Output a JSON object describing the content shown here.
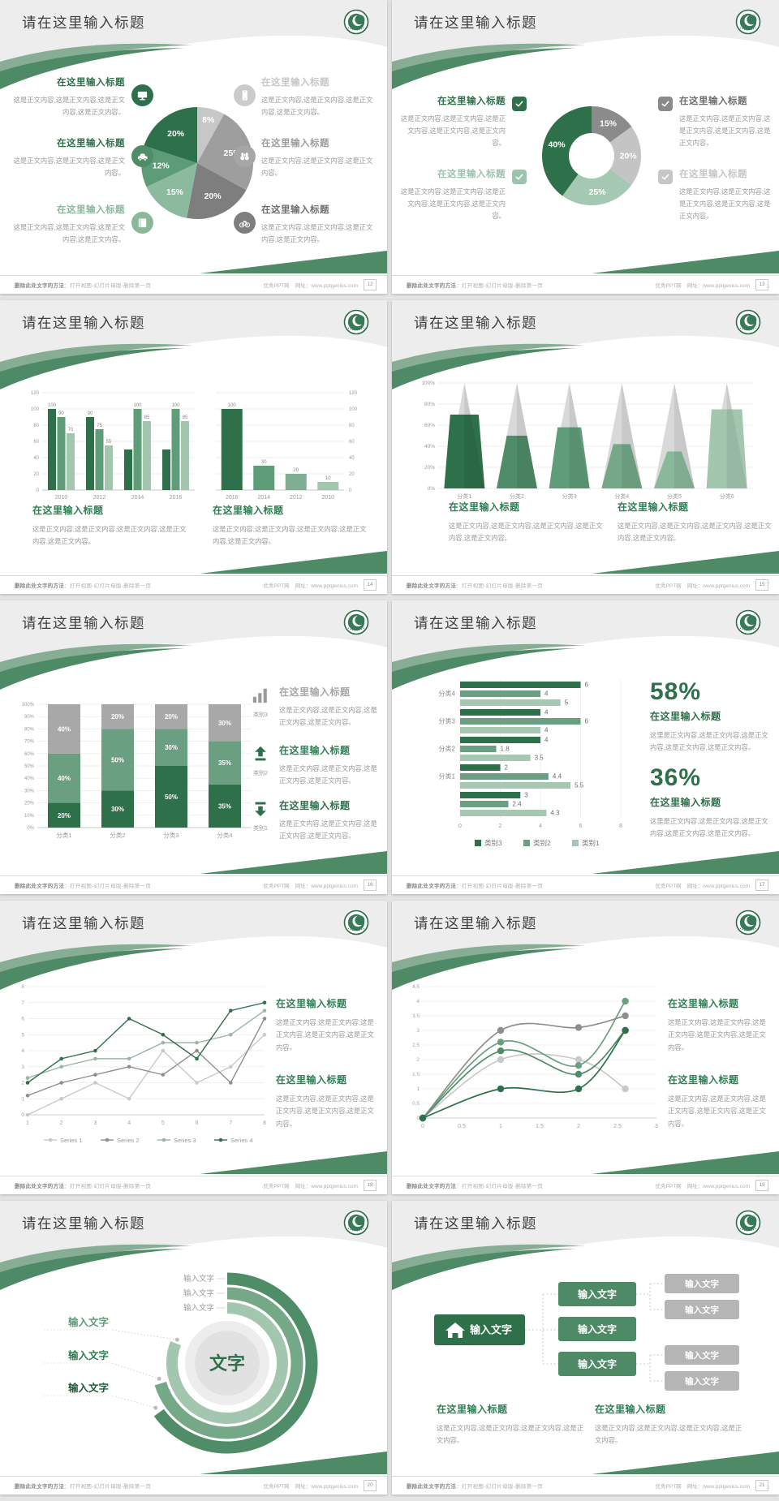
{
  "common": {
    "slide_title": "请在这里输入标题",
    "placeholder_heading": "在这里输入标题",
    "input_text": "输入文字",
    "center_text": "文字",
    "body_short": "这是正文内容,这是正文内容,这是正文内容,这是正文内容。",
    "body_long": "这是正文内容,这是正文内容,这是正文内容,这是正文内容,这是正文内容。",
    "body_alt": "这里是正文内容,这是正文内容,这是正文内容,这是正文内容,这是正文内容。",
    "footer": {
      "left_bold": "删除此处文字的方法",
      "left_rest": "：打开视图-幻灯片母版-删除第一页",
      "right_site": "优秀PPT网",
      "right_url": "网址：www.pptgenius.com"
    },
    "colors": {
      "green_dark": "#2e7049",
      "green": "#4f8c68",
      "green_mid": "#74a887",
      "green_light": "#a3c6af",
      "heading_green": "#2e8054",
      "gray_dark": "#7e7e7e",
      "gray": "#a6a6a6",
      "gray_light": "#cbcbcb",
      "swoosh": "#4e8a66",
      "top_band": "#ededed"
    }
  },
  "slides": [
    {
      "page": "12",
      "type": "pie_callouts",
      "chart_refs": [
        0
      ],
      "left": [
        {
          "heading": "在这里输入标题",
          "hcolor": "#2e7049",
          "body": "这是正文内容,这是正文内容,这是正文内容,这是正文内容。",
          "icon": "monitor-icon",
          "circle": "#2e7049"
        },
        {
          "heading": "在这里输入标题",
          "hcolor": "#2e7049",
          "body": "这是正文内容,这是正文内容,这是正文内容。",
          "icon": "car-icon",
          "circle": "#4f8c68"
        },
        {
          "heading": "在这里输入标题",
          "hcolor": "#8ab89b",
          "body": "这是正文内容,这是正文内容,这是正文内容,这是正文内容。",
          "icon": "book-icon",
          "circle": "#8ab89b"
        }
      ],
      "right": [
        {
          "heading": "在这里输入标题",
          "hcolor": "#c6c6c6",
          "body": "这是正文内容,这是正文内容,这是正文内容,这是正文内容。",
          "icon": "phone-icon",
          "circle": "#cbcbcb"
        },
        {
          "heading": "在这里输入标题",
          "hcolor": "#9e9e9e",
          "body": "这是正文内容,这是正文内容,这是正文内容。",
          "icon": "binoculars-icon",
          "circle": "#a6a6a6"
        },
        {
          "heading": "在这里输入标题",
          "hcolor": "#6f6f6f",
          "body": "这是正文内容,这是正文内容,这是正文内容,这是正文内容。",
          "icon": "bicycle-icon",
          "circle": "#7e7e7e"
        }
      ]
    },
    {
      "page": "13",
      "type": "donut_checks",
      "chart_refs": [
        1
      ],
      "left": [
        {
          "heading": "在这里输入标题",
          "hcolor": "#2e7049",
          "box": "#2e7049",
          "body": "这是正文内容,这是正文内容,这是正文内容,这是正文内容,这是正文内容。"
        },
        {
          "heading": "在这里输入标题",
          "hcolor": "#9cc3ab",
          "box": "#9cc3ab",
          "body": "这是正文内容,这是正文内容,这是正文内容,这是正文内容,这是正文内容。"
        }
      ],
      "right": [
        {
          "heading": "在这里输入标题",
          "hcolor": "#6f6f6f",
          "box": "#8a8a8a",
          "body": "这是正文内容,这是正文内容,这是正文内容,这是正文内容,这是正文内容。"
        },
        {
          "heading": "在这里输入标题",
          "hcolor": "#c6c6c6",
          "box": "#c6c6c6",
          "body": "这是正文内容,这是正文内容,这是正文内容,这是正文内容,这是正文内容。"
        }
      ]
    },
    {
      "page": "14",
      "type": "dual_bars",
      "chart_refs": [
        2,
        3
      ],
      "blocks": [
        {
          "heading": "在这里输入标题",
          "body": "这是正文内容,这是正文内容,这是正文内容,这是正文内容,这是正文内容。"
        },
        {
          "heading": "在这里输入标题",
          "body": "这是正文内容,这是正文内容,这是正文内容,这是正文内容,这是正文内容。"
        }
      ]
    },
    {
      "page": "15",
      "type": "pyramid",
      "chart_refs": [
        4
      ],
      "blocks": [
        {
          "heading": "在这里输入标题",
          "body": "这是正文内容,这是正文内容,这是正文内容,这是正文内容,这是正文内容。"
        },
        {
          "heading": "在这里输入标题",
          "body": "这是正文内容,这是正文内容,这是正文内容,这是正文内容,这是正文内容。"
        }
      ]
    },
    {
      "page": "16",
      "type": "stacked",
      "chart_refs": [
        5
      ],
      "items": [
        {
          "label": "类别3",
          "icon": "chart-bars-icon",
          "hcolor": "#a8a8a8",
          "heading": "在这里输入标题",
          "body": "这是正文内容,这是正文内容,这是正文内容,这是正文内容。"
        },
        {
          "label": "类别2",
          "icon": "arrow-up-icon",
          "hcolor": "#2e8054",
          "heading": "在这里输入标题",
          "body": "这是正文内容,这是正文内容,这是正文内容,这是正文内容。"
        },
        {
          "label": "类别1",
          "icon": "arrow-down-icon",
          "hcolor": "#2e7049",
          "heading": "在这里输入标题",
          "body": "这是正文内容,这是正文内容,这是正文内容,这是正文内容。"
        }
      ]
    },
    {
      "page": "17",
      "type": "hbar_stats",
      "chart_refs": [
        6
      ],
      "stats": [
        {
          "pct": "58%",
          "heading": "在这里输入标题",
          "body": "这里是正文内容,这是正文内容,这是正文内容,这是正文内容,这是正文内容。"
        },
        {
          "pct": "36%",
          "heading": "在这里输入标题",
          "body": "这里是正文内容,这是正文内容,这是正文内容,这是正文内容,这是正文内容。"
        }
      ]
    },
    {
      "page": "18",
      "type": "lines",
      "chart_refs": [
        7
      ],
      "blocks": [
        {
          "heading": "在这里输入标题",
          "body": "这是正文内容,这是正文内容,这是正文内容,这是正文内容,这是正文内容。"
        },
        {
          "heading": "在这里输入标题",
          "body": "这是正文内容,这是正文内容,这是正文内容,这是正文内容,这是正文内容。"
        }
      ]
    },
    {
      "page": "19",
      "type": "smooth",
      "chart_refs": [
        8
      ],
      "blocks": [
        {
          "heading": "在这里输入标题",
          "body": "这是正文内容,这是正文内容,这是正文内容,这是正文内容,这是正文内容。"
        },
        {
          "heading": "在这里输入标题",
          "body": "这是正文内容,这是正文内容,这是正文内容,这是正文内容,这是正文内容。"
        }
      ]
    },
    {
      "page": "20",
      "type": "arcs",
      "chart_refs": [
        9
      ]
    },
    {
      "page": "21",
      "type": "tree",
      "chart_refs": [
        10
      ],
      "blocks": [
        {
          "heading": "在这里输入标题",
          "body": "这是正文内容,这是正文内容,这是正文内容,这是正文内容。"
        },
        {
          "heading": "在这里输入标题",
          "body": "这是正文内容,这是正文内容,这是正文内容,这是正文内容。"
        }
      ]
    }
  ],
  "chart_data": [
    {
      "type": "pie",
      "values": [
        8,
        25,
        20,
        15,
        12,
        20
      ],
      "labels": [
        "8%",
        "25%",
        "20%",
        "15%",
        "12%",
        "20%"
      ],
      "colors": [
        "#c7c7c7",
        "#9e9e9e",
        "#7e7e7e",
        "#8cba9e",
        "#5d9c77",
        "#2e7049"
      ]
    },
    {
      "type": "pie",
      "subtype": "donut",
      "values": [
        15,
        20,
        25,
        40
      ],
      "labels": [
        "15%",
        "20%",
        "25%",
        "40%"
      ],
      "colors": [
        "#8b8b8b",
        "#c4c4c4",
        "#a5c8b2",
        "#2e7049"
      ]
    },
    {
      "type": "bar",
      "categories": [
        "2010",
        "2012",
        "2014",
        "2016"
      ],
      "series": [
        {
          "name": "s1",
          "values": [
            100,
            90,
            50,
            50
          ]
        },
        {
          "name": "s2",
          "values": [
            90,
            75,
            100,
            100
          ]
        },
        {
          "name": "s3",
          "values": [
            70,
            55,
            85,
            85
          ]
        }
      ],
      "bar_labels": [
        [
          "100",
          "90",
          "70"
        ],
        [
          "90",
          "75",
          "55"
        ],
        [
          "",
          "100",
          "85"
        ],
        [
          "",
          "100",
          "85"
        ]
      ],
      "ylim": [
        0,
        120
      ],
      "ytick_step": 20,
      "colors": [
        "#2e7049",
        "#5f9c78",
        "#a3c6af"
      ],
      "y_axis": "left"
    },
    {
      "type": "bar",
      "categories": [
        "2016",
        "2014",
        "2012",
        "2010"
      ],
      "series": [
        {
          "name": "s1",
          "values": [
            100,
            30,
            20,
            10
          ]
        }
      ],
      "bar_labels": [
        [
          "100"
        ],
        [
          "30"
        ],
        [
          "20"
        ],
        [
          "10"
        ]
      ],
      "ylim": [
        0,
        120
      ],
      "ytick_step": 20,
      "colors_per_bar": [
        "#2e7049",
        "#5f9c78",
        "#7fae92",
        "#a3c6af"
      ],
      "y_axis": "right"
    },
    {
      "type": "pyramid",
      "categories": [
        "分类1",
        "分类2",
        "分类3",
        "分类4",
        "分类5",
        "分类6"
      ],
      "fill_percent": [
        70,
        50,
        58,
        42,
        35,
        75
      ],
      "cone_colors": [
        "#2e7049",
        "#4f8c68",
        "#5f9c78",
        "#74a887",
        "#8ab89b",
        "#a3c6af"
      ],
      "unfilled_color": "#d9d9d9",
      "ylim": [
        0,
        100
      ],
      "ytick_step": 20
    },
    {
      "type": "bar",
      "subtype": "stacked",
      "categories": [
        "分类1",
        "分类2",
        "分类3",
        "分类4"
      ],
      "series": [
        {
          "name": "bottom",
          "values": [
            20,
            30,
            50,
            35
          ],
          "color": "#2e7049"
        },
        {
          "name": "middle",
          "values": [
            40,
            50,
            30,
            35
          ],
          "color": "#6aa081"
        },
        {
          "name": "top",
          "values": [
            40,
            20,
            20,
            30
          ],
          "color": "#a8a8a8"
        }
      ],
      "label_suffix": "%",
      "ylim": [
        0,
        100
      ],
      "ytick_step": 10
    },
    {
      "type": "bar",
      "subtype": "horizontal",
      "xlim": [
        0,
        8
      ],
      "xtick_step": 2,
      "groups": [
        {
          "label": "分类4",
          "values": [
            6,
            4,
            5
          ]
        },
        {
          "label": "分类3",
          "values": [
            4,
            6,
            4
          ]
        },
        {
          "label": "分类2",
          "values": [
            4,
            1.8,
            3.5
          ]
        },
        {
          "label": "分类1",
          "values": [
            2,
            4.4,
            5.5
          ]
        },
        {
          "label": "",
          "values": [
            3,
            2.4,
            4.3
          ]
        }
      ],
      "colors": [
        "#2e7049",
        "#6aa081",
        "#a8c7b3"
      ],
      "legend": [
        "类别3",
        "类别2",
        "类别1"
      ]
    },
    {
      "type": "line",
      "x": [
        1,
        2,
        3,
        4,
        5,
        6,
        7,
        8
      ],
      "ylim": [
        0,
        8
      ],
      "ytick_step": 1,
      "series": [
        {
          "name": "Series 1",
          "color": "#c9c9c9",
          "values": [
            0,
            1,
            2,
            1,
            4,
            2,
            3,
            5
          ]
        },
        {
          "name": "Series 2",
          "color": "#8f8f8f",
          "values": [
            1.2,
            2,
            2.5,
            3,
            2.5,
            4,
            2,
            6
          ]
        },
        {
          "name": "Series 3",
          "color": "#9ab7a5",
          "values": [
            2.3,
            3,
            3.5,
            3.5,
            4.5,
            4.5,
            5,
            6.5
          ]
        },
        {
          "name": "Series 4",
          "color": "#2e7049",
          "values": [
            2,
            3.5,
            4,
            6,
            5,
            3.5,
            6.5,
            7
          ]
        }
      ],
      "legend_position": "bottom"
    },
    {
      "type": "line",
      "subtype": "smooth",
      "x": [
        0,
        1,
        2,
        2.6
      ],
      "xticks": [
        0,
        0.5,
        1,
        1.5,
        2,
        2.5,
        3
      ],
      "ylim": [
        0,
        4.5
      ],
      "ytick_step": 0.5,
      "series": [
        {
          "name": "s1",
          "color": "#8f8f8f",
          "values": [
            0,
            3,
            3.1,
            3.5
          ]
        },
        {
          "name": "s2",
          "color": "#c9c9c9",
          "values": [
            0,
            2,
            2,
            1
          ]
        },
        {
          "name": "s3",
          "color": "#6aa081",
          "values": [
            0,
            2.6,
            1.8,
            4
          ]
        },
        {
          "name": "s4",
          "color": "#4f8c68",
          "values": [
            0,
            2.3,
            1.5,
            3
          ]
        },
        {
          "name": "s5",
          "color": "#2e7049",
          "values": [
            0,
            1,
            1,
            3
          ]
        }
      ]
    },
    {
      "type": "radial_rings",
      "center_label": "文字",
      "rings": [
        {
          "color": "#4f8c68",
          "r": 104,
          "end_angle": 234
        },
        {
          "color": "#74a887",
          "r": 86,
          "end_angle": 253
        },
        {
          "color": "#a3c6af",
          "r": 68,
          "end_angle": 291
        }
      ],
      "right_labels": [
        "输入文字",
        "输入文字",
        "输入文字"
      ],
      "left_labels": [
        {
          "text": "输入文字",
          "color": "#5f9c78"
        },
        {
          "text": "输入文字",
          "color": "#2e8054"
        },
        {
          "text": "输入文字",
          "color": "#1e5c39"
        }
      ]
    },
    {
      "type": "org_tree",
      "root": "输入文字",
      "level2": [
        "输入文字",
        "输入文字",
        "输入文字"
      ],
      "level3": [
        "输入文字",
        "输入文字",
        "输入文字",
        "输入文字"
      ],
      "colors": {
        "root": "#2e7049",
        "mid": "#4e8a66",
        "leaf": "#b5b5b5"
      }
    }
  ]
}
